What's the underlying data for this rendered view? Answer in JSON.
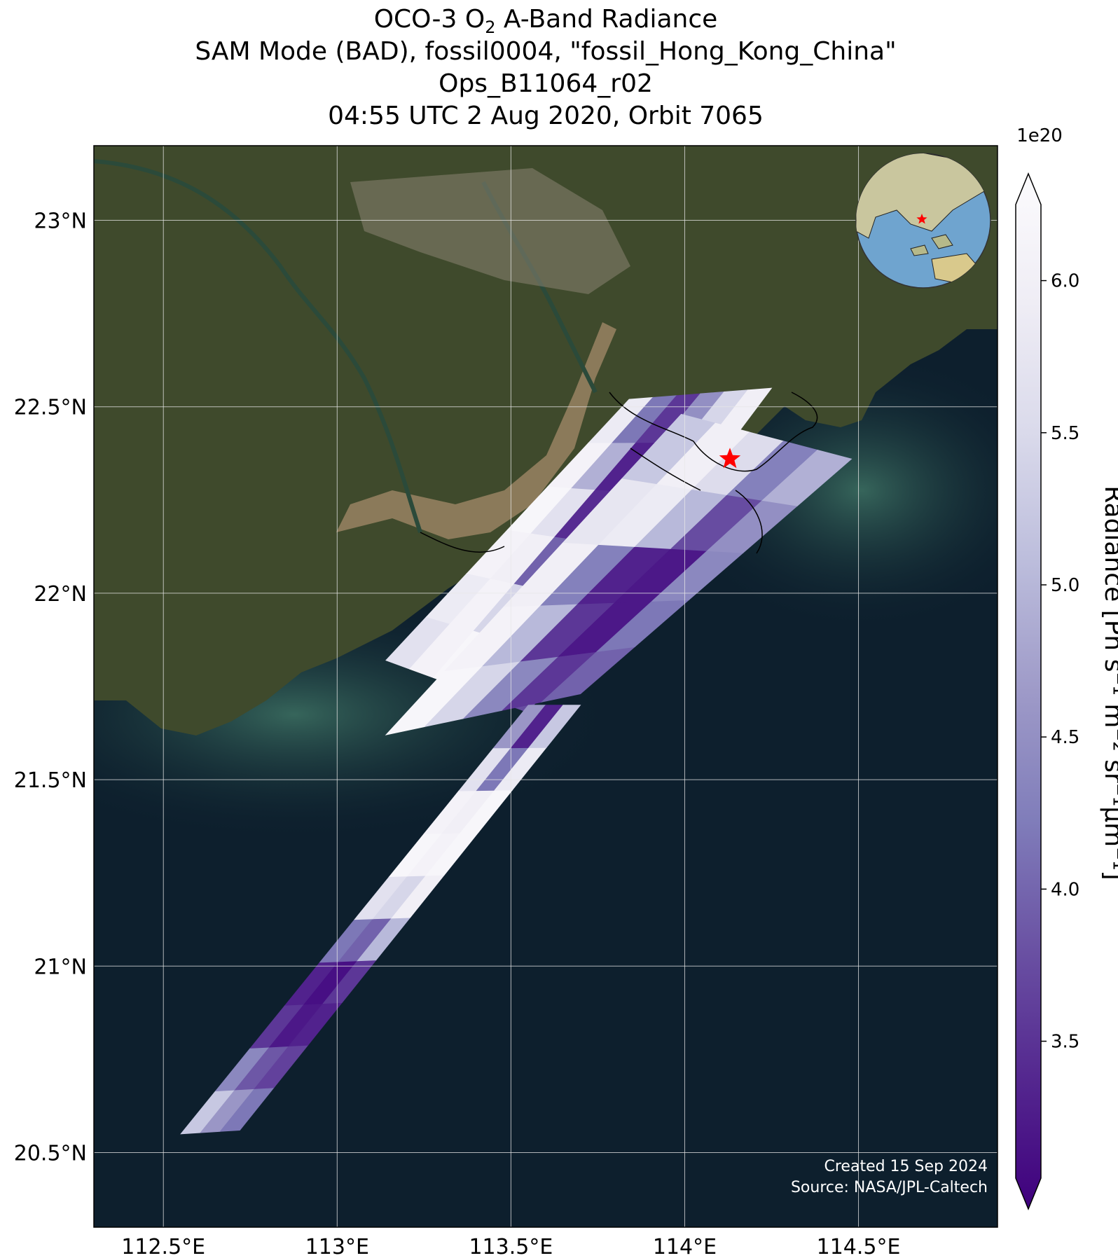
{
  "title": {
    "line1_prefix": "OCO-3 O",
    "line1_sub": "2",
    "line1_suffix": " A-Band Radiance",
    "line2": "SAM Mode (BAD), fossil0004, \"fossil_Hong_Kong_China\"",
    "line3": "Ops_B11064_r02",
    "line4": "04:55 UTC 2 Aug 2020, Orbit 7065"
  },
  "map": {
    "lon_range": [
      112.3,
      114.9
    ],
    "lat_range": [
      20.3,
      23.2
    ],
    "lon_ticks": [
      {
        "value": 112.5,
        "label": "112.5°E"
      },
      {
        "value": 113.0,
        "label": "113°E"
      },
      {
        "value": 113.5,
        "label": "113.5°E"
      },
      {
        "value": 114.0,
        "label": "114°E"
      },
      {
        "value": 114.5,
        "label": "114.5°E"
      }
    ],
    "lat_ticks": [
      {
        "value": 23.0,
        "label": "23°N"
      },
      {
        "value": 22.5,
        "label": "22.5°N"
      },
      {
        "value": 22.0,
        "label": "22°N"
      },
      {
        "value": 21.5,
        "label": "21.5°N"
      },
      {
        "value": 21.0,
        "label": "21°N"
      },
      {
        "value": 20.5,
        "label": "20.5°N"
      }
    ],
    "target": {
      "name": "fossil_Hong_Kong_China",
      "lon": 114.13,
      "lat": 22.36
    },
    "colors": {
      "land": "#3f4a2c",
      "urban": "#8a8472",
      "sea_deep": "#0d1f2d",
      "sea_coastal": "#2f5e58",
      "sediment": "#8b7a5a",
      "river": "#2b4a3a",
      "grid": "#e8e8e8",
      "star": "#ff0000"
    }
  },
  "colorbar": {
    "label": "Radiance [Ph s⁻¹ m⁻² sr⁻¹μm⁻¹]",
    "exponent": "1e20",
    "min": 3.05,
    "max": 6.25,
    "ticks": [
      {
        "value": 3.5,
        "label": "3.5"
      },
      {
        "value": 4.0,
        "label": "4.0"
      },
      {
        "value": 4.5,
        "label": "4.5"
      },
      {
        "value": 5.0,
        "label": "5.0"
      },
      {
        "value": 5.5,
        "label": "5.5"
      },
      {
        "value": 6.0,
        "label": "6.0"
      }
    ],
    "colormap": [
      "#3f007d",
      "#54278f",
      "#6a51a3",
      "#807dba",
      "#9e9ac8",
      "#bcbddc",
      "#dadaeb",
      "#efedf5",
      "#fcfbfd"
    ]
  },
  "swaths": [
    {
      "name": "north-swath",
      "corners": [
        [
          113.14,
          21.82
        ],
        [
          113.84,
          22.52
        ],
        [
          114.25,
          22.55
        ],
        [
          113.55,
          21.68
        ]
      ],
      "values": [
        [
          5.6,
          6.0,
          6.1,
          5.8,
          4.6,
          3.8
        ],
        [
          5.8,
          6.0,
          5.4,
          3.7,
          3.3,
          3.6
        ],
        [
          6.0,
          5.9,
          4.0,
          3.3,
          3.2,
          3.5
        ],
        [
          6.1,
          5.6,
          3.5,
          3.2,
          3.4,
          4.2
        ],
        [
          6.0,
          4.9,
          3.4,
          3.6,
          4.8,
          5.5
        ],
        [
          5.8,
          4.2,
          3.6,
          4.5,
          5.4,
          5.9
        ]
      ]
    },
    {
      "name": "middle-swath",
      "corners": [
        [
          113.14,
          21.62
        ],
        [
          113.99,
          22.48
        ],
        [
          114.48,
          22.36
        ],
        [
          113.7,
          21.73
        ]
      ],
      "values": [
        [
          6.1,
          5.4,
          4.4,
          3.6,
          4.0
        ],
        [
          6.0,
          5.0,
          3.6,
          3.3,
          4.2
        ],
        [
          5.9,
          4.3,
          3.4,
          3.3,
          4.4
        ],
        [
          5.7,
          5.8,
          5.0,
          3.8,
          4.5
        ],
        [
          5.2,
          5.9,
          5.5,
          4.3,
          4.9
        ]
      ]
    },
    {
      "name": "south-swath",
      "corners": [
        [
          112.55,
          20.55
        ],
        [
          113.55,
          21.7
        ],
        [
          113.7,
          21.7
        ],
        [
          112.72,
          20.56
        ]
      ],
      "values": [
        [
          5.2,
          4.6,
          4.2
        ],
        [
          4.4,
          3.9,
          3.7
        ],
        [
          3.6,
          3.3,
          3.4
        ],
        [
          3.4,
          3.2,
          3.6
        ],
        [
          4.2,
          4.0,
          5.0
        ],
        [
          5.6,
          5.4,
          5.9
        ],
        [
          6.1,
          6.0,
          6.1
        ],
        [
          6.0,
          5.9,
          6.1
        ],
        [
          5.6,
          4.2,
          5.8
        ],
        [
          4.6,
          3.4,
          5.2
        ]
      ]
    }
  ],
  "inset": {
    "label": "globe-inset"
  },
  "credits": {
    "line1": "Created 15 Sep 2024",
    "line2": "Source: NASA/JPL-Caltech"
  }
}
